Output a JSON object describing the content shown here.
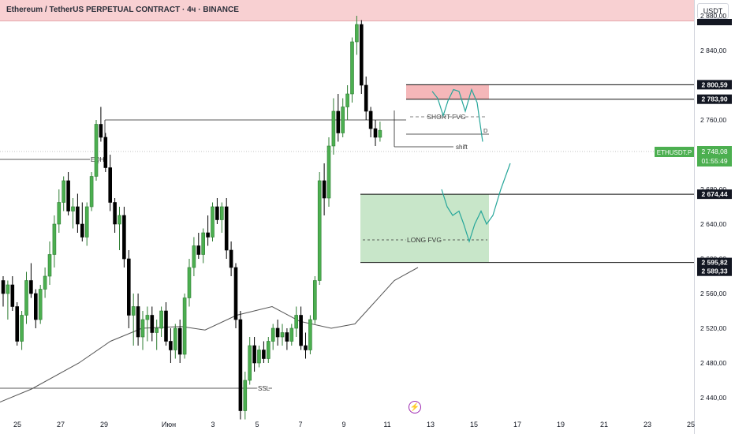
{
  "header": {
    "title": "Ethereum / TetherUS PERPETUAL CONTRACT · 4ч · BINANCE",
    "currency_button": "USDT"
  },
  "colors": {
    "up": "#4caf50",
    "down": "#000000",
    "short_fvg": "#f5b7b9",
    "long_fvg": "#c8e6c9",
    "ma": "#555555",
    "projection": "#26a69a",
    "symbol_badge": "#4caf50"
  },
  "chart_data": {
    "type": "candlestick",
    "symbol": "ETHUSDT.P",
    "timeframe": "4ч",
    "exchange": "BINANCE",
    "ylim": [
      2410,
      2905
    ],
    "x_ticks": [
      "25",
      "27",
      "29",
      "Июн",
      "3",
      "5",
      "7",
      "9",
      "11",
      "13",
      "15",
      "17",
      "19",
      "21",
      "23",
      "25"
    ],
    "y_ticks": [
      "2 440,00",
      "2 480,00",
      "2 520,00",
      "2 560,00",
      "2 600,00",
      "2 640,00",
      "2 680,00",
      "2 720,00",
      "2 760,00",
      "2 800,00",
      "2 840,00",
      "2 880,00"
    ],
    "price_labels": [
      {
        "text": "2 800,59",
        "value": 2800.59
      },
      {
        "text": "2 783,90",
        "value": 2783.9
      },
      {
        "text": "2 674,44",
        "value": 2674.44
      },
      {
        "text": "2 595,82",
        "value": 2595.82
      },
      {
        "text": "2 589,33",
        "value": 2589.33
      }
    ],
    "current_price": {
      "symbol": "ETHUSDT.P",
      "price": "2 748,08",
      "timer": "01:55:49",
      "value": 2748.08
    },
    "annotations": {
      "eqh": {
        "label": "EQH",
        "value": 2793.7
      },
      "ssl": {
        "label": "SSL",
        "value": 2438
      },
      "short_fvg": {
        "label": "SHORT FVG",
        "top": 2800.59,
        "bottom": 2783.9
      },
      "long_fvg": {
        "label": "LONG FVG",
        "top": 2674.44,
        "bottom": 2595.82
      },
      "shift": {
        "label": "shift"
      },
      "d_marker": {
        "label": "D"
      }
    },
    "candles": [
      [
        2575,
        2580,
        2545,
        2560
      ],
      [
        2560,
        2575,
        2530,
        2570
      ],
      [
        2570,
        2580,
        2540,
        2545
      ],
      [
        2545,
        2550,
        2500,
        2505
      ],
      [
        2505,
        2540,
        2495,
        2535
      ],
      [
        2535,
        2585,
        2525,
        2575
      ],
      [
        2575,
        2595,
        2555,
        2560
      ],
      [
        2560,
        2565,
        2520,
        2530
      ],
      [
        2530,
        2570,
        2525,
        2565
      ],
      [
        2565,
        2590,
        2555,
        2580
      ],
      [
        2580,
        2620,
        2570,
        2605
      ],
      [
        2605,
        2650,
        2590,
        2640
      ],
      [
        2640,
        2680,
        2630,
        2665
      ],
      [
        2665,
        2695,
        2655,
        2690
      ],
      [
        2690,
        2700,
        2650,
        2655
      ],
      [
        2655,
        2670,
        2635,
        2660
      ],
      [
        2660,
        2675,
        2630,
        2640
      ],
      [
        2640,
        2665,
        2620,
        2625
      ],
      [
        2625,
        2665,
        2615,
        2660
      ],
      [
        2660,
        2700,
        2655,
        2695
      ],
      [
        2695,
        2760,
        2690,
        2755
      ],
      [
        2755,
        2775,
        2735,
        2740
      ],
      [
        2740,
        2745,
        2700,
        2705
      ],
      [
        2705,
        2720,
        2655,
        2665
      ],
      [
        2665,
        2670,
        2630,
        2640
      ],
      [
        2640,
        2660,
        2610,
        2650
      ],
      [
        2650,
        2660,
        2590,
        2600
      ],
      [
        2600,
        2610,
        2520,
        2535
      ],
      [
        2535,
        2560,
        2500,
        2545
      ],
      [
        2545,
        2560,
        2500,
        2510
      ],
      [
        2510,
        2540,
        2495,
        2530
      ],
      [
        2530,
        2545,
        2505,
        2535
      ],
      [
        2535,
        2545,
        2505,
        2515
      ],
      [
        2515,
        2530,
        2495,
        2520
      ],
      [
        2520,
        2545,
        2510,
        2540
      ],
      [
        2540,
        2550,
        2500,
        2505
      ],
      [
        2505,
        2520,
        2480,
        2495
      ],
      [
        2495,
        2525,
        2485,
        2520
      ],
      [
        2520,
        2530,
        2480,
        2490
      ],
      [
        2490,
        2560,
        2485,
        2555
      ],
      [
        2555,
        2600,
        2545,
        2590
      ],
      [
        2590,
        2625,
        2580,
        2615
      ],
      [
        2615,
        2630,
        2600,
        2605
      ],
      [
        2605,
        2635,
        2595,
        2630
      ],
      [
        2630,
        2650,
        2615,
        2625
      ],
      [
        2625,
        2665,
        2620,
        2660
      ],
      [
        2660,
        2670,
        2640,
        2645
      ],
      [
        2645,
        2665,
        2630,
        2660
      ],
      [
        2660,
        2670,
        2600,
        2610
      ],
      [
        2610,
        2620,
        2580,
        2590
      ],
      [
        2590,
        2595,
        2520,
        2530
      ],
      [
        2530,
        2540,
        2415,
        2425
      ],
      [
        2425,
        2470,
        2415,
        2460
      ],
      [
        2460,
        2510,
        2455,
        2500
      ],
      [
        2500,
        2510,
        2470,
        2480
      ],
      [
        2480,
        2500,
        2475,
        2495
      ],
      [
        2495,
        2505,
        2480,
        2485
      ],
      [
        2485,
        2510,
        2480,
        2505
      ],
      [
        2505,
        2525,
        2495,
        2520
      ],
      [
        2520,
        2530,
        2500,
        2510
      ],
      [
        2510,
        2525,
        2500,
        2515
      ],
      [
        2515,
        2520,
        2495,
        2505
      ],
      [
        2505,
        2525,
        2500,
        2520
      ],
      [
        2520,
        2545,
        2510,
        2535
      ],
      [
        2535,
        2545,
        2495,
        2500
      ],
      [
        2500,
        2515,
        2485,
        2495
      ],
      [
        2495,
        2535,
        2490,
        2530
      ],
      [
        2530,
        2580,
        2525,
        2575
      ],
      [
        2575,
        2700,
        2570,
        2690
      ],
      [
        2690,
        2710,
        2650,
        2670
      ],
      [
        2670,
        2740,
        2660,
        2730
      ],
      [
        2730,
        2785,
        2720,
        2770
      ],
      [
        2770,
        2790,
        2735,
        2745
      ],
      [
        2745,
        2785,
        2740,
        2775
      ],
      [
        2775,
        2800,
        2760,
        2790
      ],
      [
        2790,
        2855,
        2780,
        2850
      ],
      [
        2850,
        2880,
        2835,
        2870
      ],
      [
        2870,
        2875,
        2790,
        2800
      ],
      [
        2800,
        2810,
        2760,
        2770
      ],
      [
        2770,
        2775,
        2740,
        2750
      ],
      [
        2750,
        2760,
        2730,
        2740
      ],
      [
        2740,
        2758,
        2735,
        2748
      ]
    ],
    "moving_average": [
      [
        0,
        2435
      ],
      [
        40,
        2450
      ],
      [
        100,
        2480
      ],
      [
        140,
        2505
      ],
      [
        180,
        2520
      ],
      [
        230,
        2522
      ],
      [
        260,
        2518
      ],
      [
        300,
        2535
      ],
      [
        345,
        2545
      ],
      [
        380,
        2528
      ],
      [
        420,
        2520
      ],
      [
        450,
        2525
      ],
      [
        470,
        2545
      ],
      [
        500,
        2575
      ],
      [
        530,
        2590
      ]
    ],
    "projection_short": [
      [
        548,
        2793
      ],
      [
        555,
        2785
      ],
      [
        562,
        2765
      ],
      [
        568,
        2782
      ],
      [
        575,
        2795
      ],
      [
        582,
        2793
      ],
      [
        590,
        2770
      ],
      [
        598,
        2795
      ],
      [
        605,
        2780
      ],
      [
        612,
        2735
      ]
    ],
    "projection_long": [
      [
        560,
        2680
      ],
      [
        567,
        2660
      ],
      [
        574,
        2650
      ],
      [
        582,
        2655
      ],
      [
        588,
        2640
      ],
      [
        595,
        2620
      ],
      [
        602,
        2640
      ],
      [
        610,
        2655
      ],
      [
        617,
        2640
      ],
      [
        625,
        2650
      ],
      [
        635,
        2680
      ],
      [
        647,
        2710
      ]
    ]
  }
}
